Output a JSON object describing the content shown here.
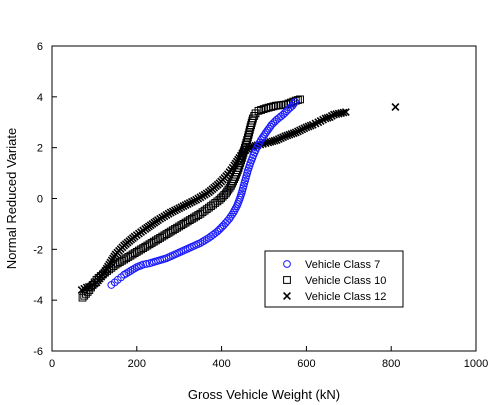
{
  "chart_data": {
    "type": "scatter",
    "title": "",
    "xlabel": "Gross Vehicle Weight (kN)",
    "ylabel": "Normal Reduced Variate",
    "xlim": [
      0,
      1000
    ],
    "ylim": [
      -6,
      6
    ],
    "xticks": [
      0,
      200,
      400,
      600,
      800,
      1000
    ],
    "yticks": [
      -6,
      -4,
      -2,
      0,
      2,
      4,
      6
    ],
    "grid": false,
    "legend_position": "lower-right",
    "series": [
      {
        "name": "Vehicle Class 7",
        "marker": "circle",
        "color": "#1a1aff",
        "points": [
          [
            140,
            -3.4
          ],
          [
            148,
            -3.3
          ],
          [
            155,
            -3.2
          ],
          [
            163,
            -3.1
          ],
          [
            170,
            -3.0
          ],
          [
            180,
            -2.9
          ],
          [
            190,
            -2.8
          ],
          [
            200,
            -2.7
          ],
          [
            215,
            -2.6
          ],
          [
            230,
            -2.55
          ],
          [
            250,
            -2.45
          ],
          [
            270,
            -2.35
          ],
          [
            290,
            -2.2
          ],
          [
            310,
            -2.05
          ],
          [
            330,
            -1.9
          ],
          [
            350,
            -1.75
          ],
          [
            370,
            -1.55
          ],
          [
            390,
            -1.3
          ],
          [
            405,
            -1.05
          ],
          [
            418,
            -0.8
          ],
          [
            428,
            -0.55
          ],
          [
            436,
            -0.3
          ],
          [
            442,
            -0.05
          ],
          [
            447,
            0.2
          ],
          [
            452,
            0.5
          ],
          [
            457,
            0.8
          ],
          [
            462,
            1.1
          ],
          [
            468,
            1.4
          ],
          [
            475,
            1.7
          ],
          [
            483,
            2.0
          ],
          [
            493,
            2.3
          ],
          [
            505,
            2.6
          ],
          [
            518,
            2.9
          ],
          [
            530,
            3.1
          ],
          [
            545,
            3.3
          ],
          [
            557,
            3.5
          ],
          [
            567,
            3.65
          ],
          [
            573,
            3.8
          ]
        ]
      },
      {
        "name": "Vehicle Class 10",
        "marker": "square",
        "color": "#000000",
        "points": [
          [
            72,
            -3.9
          ],
          [
            80,
            -3.75
          ],
          [
            88,
            -3.6
          ],
          [
            96,
            -3.4
          ],
          [
            105,
            -3.2
          ],
          [
            115,
            -3.05
          ],
          [
            130,
            -2.85
          ],
          [
            150,
            -2.6
          ],
          [
            175,
            -2.35
          ],
          [
            200,
            -2.1
          ],
          [
            225,
            -1.85
          ],
          [
            250,
            -1.6
          ],
          [
            275,
            -1.35
          ],
          [
            300,
            -1.1
          ],
          [
            325,
            -0.85
          ],
          [
            350,
            -0.6
          ],
          [
            375,
            -0.3
          ],
          [
            395,
            -0.05
          ],
          [
            410,
            0.2
          ],
          [
            422,
            0.5
          ],
          [
            432,
            0.85
          ],
          [
            440,
            1.2
          ],
          [
            448,
            1.6
          ],
          [
            455,
            2.0
          ],
          [
            462,
            2.4
          ],
          [
            468,
            2.8
          ],
          [
            474,
            3.15
          ],
          [
            480,
            3.35
          ],
          [
            487,
            3.45
          ],
          [
            505,
            3.55
          ],
          [
            528,
            3.65
          ],
          [
            552,
            3.7
          ],
          [
            575,
            3.85
          ],
          [
            585,
            3.9
          ]
        ]
      },
      {
        "name": "Vehicle Class 12",
        "marker": "x",
        "color": "#000000",
        "points": [
          [
            70,
            -3.6
          ],
          [
            82,
            -3.5
          ],
          [
            92,
            -3.45
          ],
          [
            105,
            -3.3
          ],
          [
            120,
            -3.0
          ],
          [
            135,
            -2.6
          ],
          [
            150,
            -2.2
          ],
          [
            170,
            -1.85
          ],
          [
            195,
            -1.5
          ],
          [
            220,
            -1.2
          ],
          [
            250,
            -0.85
          ],
          [
            280,
            -0.55
          ],
          [
            310,
            -0.3
          ],
          [
            340,
            -0.05
          ],
          [
            370,
            0.25
          ],
          [
            395,
            0.6
          ],
          [
            415,
            0.95
          ],
          [
            430,
            1.3
          ],
          [
            442,
            1.6
          ],
          [
            452,
            1.85
          ],
          [
            465,
            2.0
          ],
          [
            485,
            2.1
          ],
          [
            510,
            2.2
          ],
          [
            530,
            2.3
          ],
          [
            550,
            2.45
          ],
          [
            575,
            2.6
          ],
          [
            600,
            2.8
          ],
          [
            615,
            2.9
          ],
          [
            628,
            3.0
          ],
          [
            645,
            3.15
          ],
          [
            655,
            3.2
          ],
          [
            665,
            3.3
          ],
          [
            693,
            3.4
          ],
          [
            810,
            3.6
          ]
        ]
      }
    ]
  }
}
